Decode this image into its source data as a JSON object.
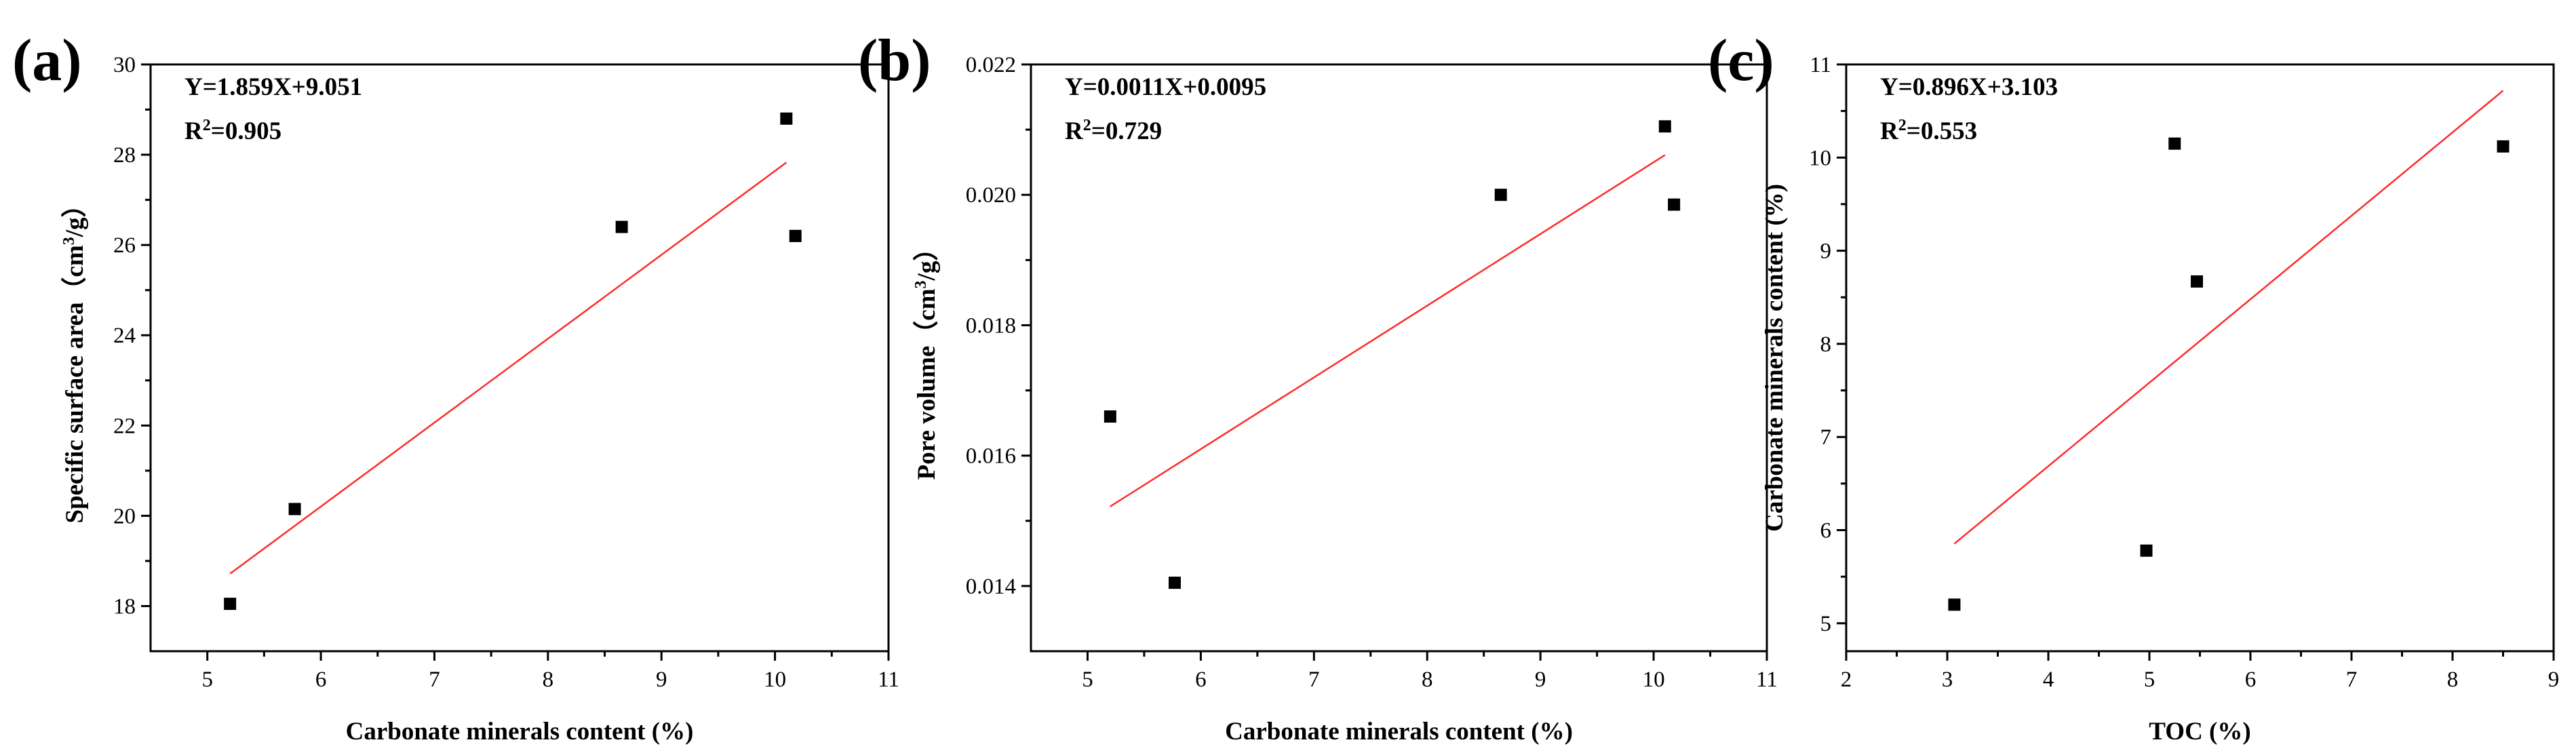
{
  "chart_data": [
    {
      "panel": "(a)",
      "type": "scatter",
      "xlabel": "Carbonate minerals content (%)",
      "ylabel": "Specific surface area（cm³/g）",
      "xlim": [
        4.5,
        11
      ],
      "ylim": [
        17,
        30
      ],
      "xticks": [
        5,
        6,
        7,
        8,
        9,
        10,
        11
      ],
      "yticks": [
        18,
        20,
        22,
        24,
        26,
        28,
        30
      ],
      "yticks_text": [
        "18",
        "20",
        "22",
        "24",
        "26",
        "28",
        "30"
      ],
      "points": [
        [
          5.2,
          18.05
        ],
        [
          5.77,
          20.15
        ],
        [
          8.65,
          26.4
        ],
        [
          10.1,
          28.8
        ],
        [
          10.18,
          26.2
        ]
      ],
      "fit": {
        "slope": 1.859,
        "intercept": 9.051,
        "x_range": [
          5.2,
          10.1
        ]
      },
      "equation": "Y=1.859X+9.051",
      "r2": "0.905"
    },
    {
      "panel": "(b)",
      "type": "scatter",
      "xlabel": "Carbonate minerals content (%)",
      "ylabel": "Pore volume（cm³/g）",
      "xlim": [
        4.5,
        11
      ],
      "ylim": [
        0.013,
        0.022
      ],
      "xticks": [
        5,
        6,
        7,
        8,
        9,
        10,
        11
      ],
      "yticks": [
        0.014,
        0.016,
        0.018,
        0.02,
        0.022
      ],
      "yticks_text": [
        "0.014",
        "0.016",
        "0.018",
        "0.020",
        "0.022"
      ],
      "points": [
        [
          5.2,
          0.0166
        ],
        [
          5.77,
          0.01405
        ],
        [
          8.65,
          0.02
        ],
        [
          10.1,
          0.02105
        ],
        [
          10.18,
          0.01985
        ]
      ],
      "fit": {
        "slope": 0.0011,
        "intercept": 0.0095,
        "x_range": [
          5.2,
          10.1
        ]
      },
      "equation": "Y=0.0011X+0.0095",
      "r2": "0.729"
    },
    {
      "panel": "(c)",
      "type": "scatter",
      "xlabel": "TOC (%)",
      "ylabel": "Carbonate minerals content (%)",
      "xlim": [
        2,
        9
      ],
      "ylim": [
        4.7,
        11
      ],
      "xticks": [
        2,
        3,
        4,
        5,
        6,
        7,
        8,
        9
      ],
      "yticks": [
        5,
        6,
        7,
        8,
        9,
        10,
        11
      ],
      "yticks_text": [
        "5",
        "6",
        "7",
        "8",
        "9",
        "10",
        "11"
      ],
      "points": [
        [
          3.07,
          5.2
        ],
        [
          4.97,
          5.78
        ],
        [
          5.25,
          10.15
        ],
        [
          5.47,
          8.67
        ],
        [
          8.5,
          10.12
        ]
      ],
      "fit": {
        "slope": 0.896,
        "intercept": 3.103,
        "x_range": [
          3.07,
          8.5
        ]
      },
      "equation": "Y=0.896X+3.103",
      "r2": "0.553"
    }
  ]
}
